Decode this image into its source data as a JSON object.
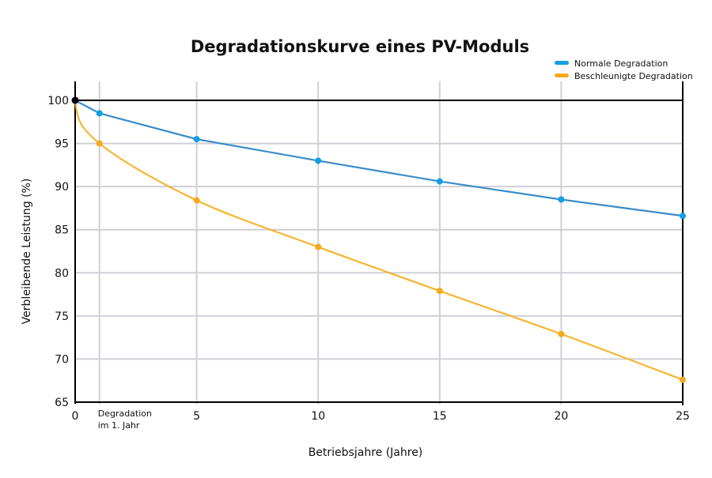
{
  "chart_data": {
    "type": "line",
    "title": "Degradationskurve eines PV-Moduls",
    "xlabel": "Betriebsjahre (Jahre)",
    "ylabel": "Verbleibende Leistung (%)",
    "xlim": [
      0,
      25
    ],
    "ylim": [
      65,
      102
    ],
    "x_ticks": [
      0,
      5,
      10,
      15,
      20,
      25
    ],
    "y_ticks": [
      65,
      70,
      75,
      80,
      85,
      90,
      95,
      100
    ],
    "annotation": {
      "x": 1,
      "lines": [
        "Degradation",
        "im 1. Jahr"
      ]
    },
    "grid": true,
    "legend_position": "top-right",
    "series": [
      {
        "name": "Normale Degradation",
        "color": "#3a8cc9",
        "marker_color": "#129fe6",
        "x": [
          0,
          1,
          5,
          10,
          15,
          20,
          25
        ],
        "y": [
          100,
          98.5,
          95.5,
          93.0,
          90.6,
          88.5,
          86.6
        ]
      },
      {
        "name": "Beschleunigte Degradation",
        "color": "#f7b531",
        "marker_color": "#f5a91c",
        "x": [
          0,
          1,
          5,
          10,
          15,
          20,
          25
        ],
        "y": [
          100,
          95.0,
          88.4,
          83.0,
          77.9,
          72.9,
          67.6
        ]
      }
    ]
  }
}
